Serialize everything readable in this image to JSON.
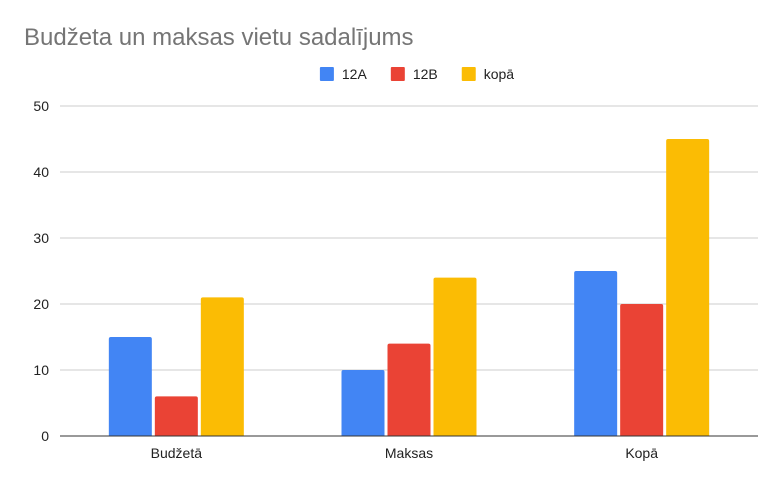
{
  "chart_data": {
    "type": "bar",
    "title": "Budžeta un maksas vietu sadalījums",
    "categories": [
      "Budžetā",
      "Maksas",
      "Kopā"
    ],
    "series": [
      {
        "name": "12A",
        "values": [
          15,
          10,
          25
        ],
        "color": "#4285f4"
      },
      {
        "name": "12B",
        "values": [
          6,
          14,
          20
        ],
        "color": "#ea4335"
      },
      {
        "name": "kopā",
        "values": [
          21,
          24,
          45
        ],
        "color": "#fbbc04"
      }
    ],
    "yticks": [
      "0",
      "10",
      "20",
      "30",
      "40",
      "50"
    ],
    "ylim": [
      0,
      50
    ],
    "xlabel": "",
    "ylabel": "",
    "legend": "top-center",
    "grid": true
  }
}
